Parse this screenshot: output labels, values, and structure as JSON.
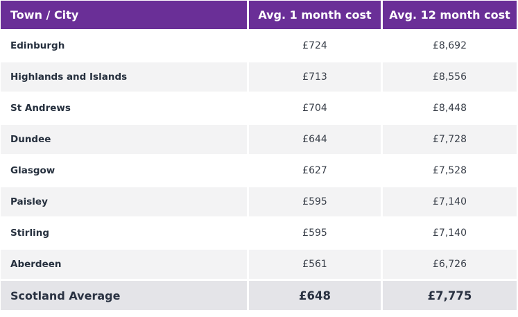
{
  "header": {
    "town": "Town / City",
    "month1": "Avg. 1 month cost",
    "month12": "Avg. 12 month cost"
  },
  "rows": [
    {
      "town": "Edinburgh",
      "month1": "£724",
      "month12": "£8,692"
    },
    {
      "town": "Highlands and Islands",
      "month1": "£713",
      "month12": "£8,556"
    },
    {
      "town": "St Andrews",
      "month1": "£704",
      "month12": "£8,448"
    },
    {
      "town": "Dundee",
      "month1": "£644",
      "month12": "£7,728"
    },
    {
      "town": "Glasgow",
      "month1": "£627",
      "month12": "£7,528"
    },
    {
      "town": "Paisley",
      "month1": "£595",
      "month12": "£7,140"
    },
    {
      "town": "Stirling",
      "month1": "£595",
      "month12": "£7,140"
    },
    {
      "town": "Aberdeen",
      "month1": "£561",
      "month12": "£6,726"
    }
  ],
  "total": {
    "town": "Scotland Average",
    "month1": "£648",
    "month12": "£7,775"
  },
  "colors": {
    "header_bg": "#6a2f97",
    "stripe": "#f3f3f4",
    "total_bg": "#e4e4e8"
  }
}
